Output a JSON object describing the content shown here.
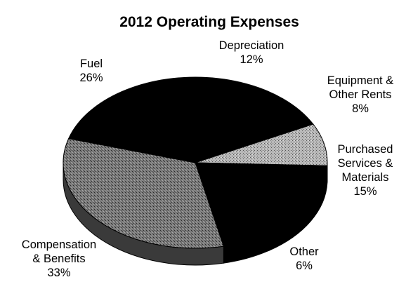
{
  "chart_data": {
    "type": "pie",
    "title": "2012 Operating Expenses",
    "legend": "none",
    "slices": [
      {
        "label": "Depreciation",
        "value": 12,
        "value_label": "12%",
        "color": "#000000"
      },
      {
        "label": "Equipment & Other Rents",
        "value": 8,
        "value_label": "8%",
        "color": "#9a9a9a"
      },
      {
        "label": "Purchased Services & Materials",
        "value": 15,
        "value_label": "15%",
        "color": "#000000"
      },
      {
        "label": "Other",
        "value": 6,
        "value_label": "6%",
        "color": "#000000"
      },
      {
        "label": "Compensation & Benefits",
        "value": 33,
        "value_label": "33%",
        "color": "#6e6e6e"
      },
      {
        "label": "Fuel",
        "value": 26,
        "value_label": "26%",
        "color": "#000000"
      }
    ]
  }
}
